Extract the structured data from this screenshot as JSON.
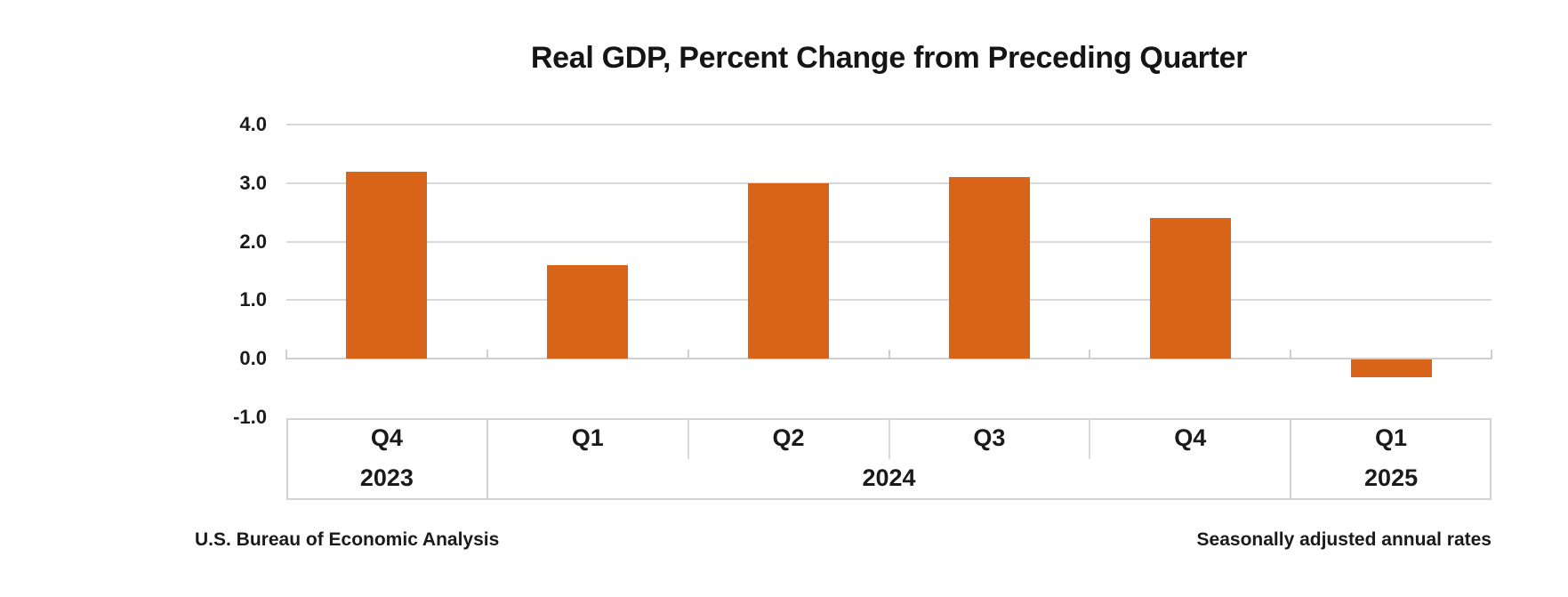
{
  "title": "Real GDP, Percent Change from Preceding Quarter",
  "footer": {
    "source": "U.S. Bureau of Economic Analysis",
    "note": "Seasonally adjusted annual rates"
  },
  "colors": {
    "bar": "#d76419",
    "gridline": "#d9d9d9",
    "axis_and_borders": "#cfcfcf",
    "text": "#1a1a1a"
  },
  "chart_data": {
    "type": "bar",
    "title": "Real GDP, Percent Change from Preceding Quarter",
    "categories": [
      "Q4",
      "Q1",
      "Q2",
      "Q3",
      "Q4",
      "Q1"
    ],
    "values": [
      3.2,
      1.6,
      3.0,
      3.1,
      2.4,
      -0.3
    ],
    "year_groups": [
      {
        "label": "2023",
        "span": 1
      },
      {
        "label": "2024",
        "span": 4
      },
      {
        "label": "2025",
        "span": 1
      }
    ],
    "xlabel": "",
    "ylabel": "",
    "ylim": [
      -1.0,
      4.0
    ],
    "yticks": [
      4.0,
      3.0,
      2.0,
      1.0,
      0.0,
      -1.0
    ],
    "ytick_labels": [
      "4.0",
      "3.0",
      "2.0",
      "1.0",
      "0.0",
      "-1.0"
    ],
    "grid": true,
    "legend": false,
    "annotations": {
      "source_note": "U.S. Bureau of Economic Analysis",
      "rate_note": "Seasonally adjusted annual rates"
    }
  }
}
